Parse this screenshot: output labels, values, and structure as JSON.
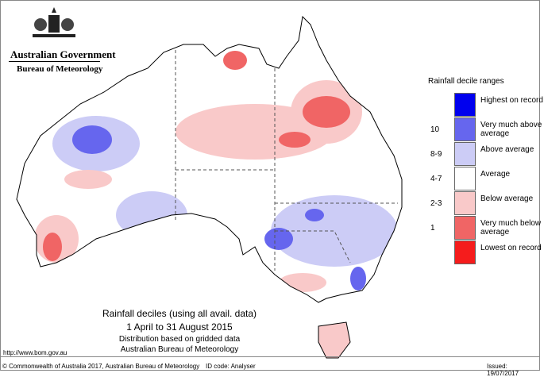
{
  "header": {
    "government": "Australian Government",
    "bureau": "Bureau of Meteorology"
  },
  "legend": {
    "title": "Rainfall decile ranges",
    "items": [
      {
        "label": "Highest on record",
        "decile": "",
        "color": "#0000ee"
      },
      {
        "label": "Very much above average",
        "decile": "10",
        "color": "#6666ee"
      },
      {
        "label": "Above average",
        "decile": "8-9",
        "color": "#ccccf6"
      },
      {
        "label": "Average",
        "decile": "4-7",
        "color": "#ffffff"
      },
      {
        "label": "Below average",
        "decile": "2-3",
        "color": "#f9c9c9"
      },
      {
        "label": "Very much below average",
        "decile": "1",
        "color": "#f06565"
      },
      {
        "label": "Lowest on record",
        "decile": "",
        "color": "#f51c1c"
      }
    ]
  },
  "caption": {
    "title": "Rainfall deciles (using all avail. data)",
    "period": "1 April to 31 August 2015",
    "line3": "Distribution based on gridded data",
    "line4": "Australian Bureau of Meteorology"
  },
  "footer": {
    "url": "http://www.bom.gov.au",
    "copyright": "© Commonwealth of Australia 2017, Australian Bureau of Meteorology",
    "id_code": "ID code: Analyser",
    "issued": "Issued: 19/07/2017"
  }
}
